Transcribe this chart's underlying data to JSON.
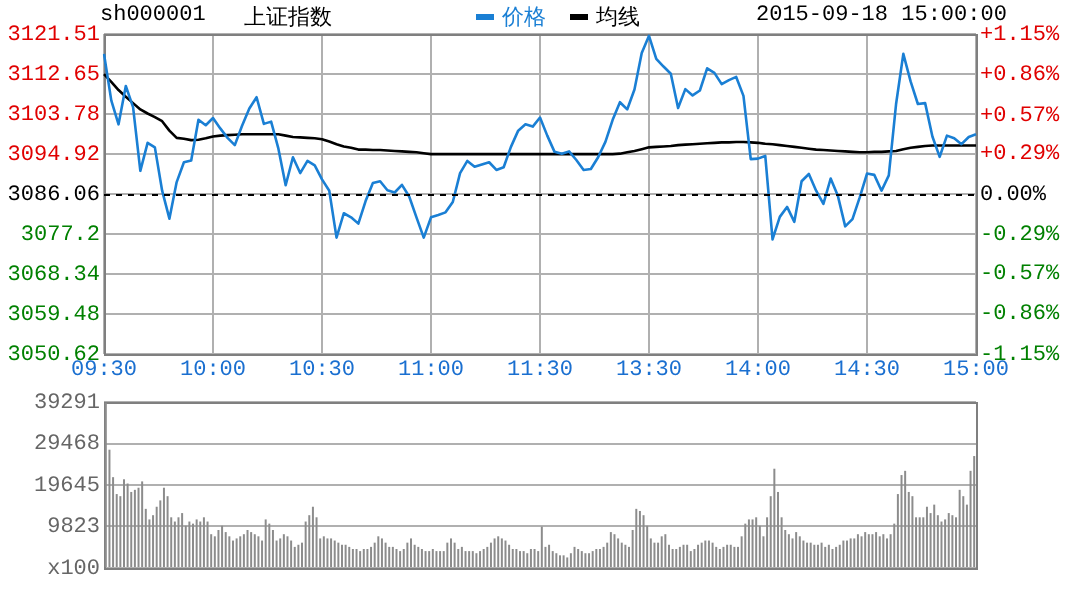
{
  "chart_data": [
    {
      "type": "line",
      "title": "上证指数",
      "subtitle": "sh000001",
      "annotations": [
        "2015-09-18 15:00:00"
      ],
      "legend": "top",
      "grid": true,
      "marker": "none",
      "line_style": "solid",
      "categories": [
        "09:30",
        null,
        null,
        null,
        null,
        null,
        null,
        null,
        null,
        null,
        null,
        null,
        null,
        null,
        null,
        "10:00",
        null,
        null,
        null,
        null,
        null,
        null,
        null,
        null,
        null,
        null,
        null,
        null,
        null,
        null,
        "10:30",
        null,
        null,
        null,
        null,
        null,
        null,
        null,
        null,
        null,
        null,
        null,
        null,
        null,
        null,
        "11:00",
        null,
        null,
        null,
        null,
        null,
        null,
        null,
        null,
        null,
        null,
        null,
        null,
        null,
        null,
        "11:30",
        null,
        null,
        null,
        null,
        null,
        null,
        null,
        null,
        null,
        null,
        null,
        null,
        null,
        null,
        "13:30",
        null,
        null,
        null,
        null,
        null,
        null,
        null,
        null,
        null,
        null,
        null,
        null,
        null,
        null,
        "14:00",
        null,
        null,
        null,
        null,
        null,
        null,
        null,
        null,
        null,
        null,
        null,
        null,
        null,
        null,
        "14:30",
        null,
        null,
        null,
        null,
        null,
        null,
        null,
        null,
        null,
        null,
        null,
        null,
        null,
        null,
        "15:00"
      ],
      "ylim": [
        3050.62,
        3121.51
      ],
      "yticks": [
        3050.62,
        3059.48,
        3068.34,
        3077.2,
        3086.06,
        3094.92,
        3103.78,
        3112.65,
        3121.51
      ],
      "y2lim": [
        -1.15,
        1.15
      ],
      "y2ticks": [
        {
          "value": -1.15,
          "label": "-1.15%"
        },
        {
          "value": -0.86,
          "label": "-0.86%"
        },
        {
          "value": -0.57,
          "label": "-0.57%"
        },
        {
          "value": -0.29,
          "label": "-0.29%"
        },
        {
          "value": 0,
          "label": "0.00%"
        },
        {
          "value": 0.29,
          "label": "+0.29%"
        },
        {
          "value": 0.57,
          "label": "+0.57%"
        },
        {
          "value": 0.86,
          "label": "+0.86%"
        },
        {
          "value": 1.15,
          "label": "+1.15%"
        }
      ],
      "ref_lines": [
        {
          "axis": "y",
          "value": 3086.06,
          "color": "#000000",
          "line_style": "dashed"
        }
      ],
      "series": [
        {
          "name": "价格",
          "color": "#1a7fd4",
          "values": [
            3117.1,
            3106.8,
            3101.5,
            3110,
            3105.3,
            3091.2,
            3097.4,
            3096.4,
            3086.8,
            3080.6,
            3088.7,
            3093.1,
            3093.5,
            3102.5,
            3101.3,
            3102.9,
            3100.6,
            3098.5,
            3096.9,
            3101.2,
            3105.0,
            3107.5,
            3101.6,
            3102.1,
            3096.1,
            3088.0,
            3094.2,
            3090.7,
            3093.4,
            3092.4,
            3089.3,
            3086.8,
            3076.4,
            3081.8,
            3080.9,
            3079.5,
            3084.5,
            3088.5,
            3088.9,
            3086.9,
            3086.4,
            3088.1,
            3085.5,
            3080.9,
            3076.4,
            3080.9,
            3081.4,
            3082.0,
            3084.3,
            3090.7,
            3093.4,
            3092.1,
            3092.6,
            3093.1,
            3091.4,
            3092.0,
            3096.5,
            3100.1,
            3101.5,
            3101.0,
            3103.0,
            3099.0,
            3095.4,
            3095.0,
            3095.5,
            3093.6,
            3091.4,
            3091.6,
            3094.2,
            3097.6,
            3102.5,
            3106.4,
            3104.8,
            3109.2,
            3117.3,
            3121.1,
            3116.0,
            3114.3,
            3112.7,
            3105.1,
            3109.3,
            3107.9,
            3109.0,
            3113.9,
            3112.9,
            3110.4,
            3111.3,
            3112.0,
            3107.8,
            3093.8,
            3093.9,
            3094.5,
            3076.0,
            3081.0,
            3083.2,
            3079.9,
            3088.9,
            3090.5,
            3086.8,
            3083.9,
            3089.5,
            3085.6,
            3078.9,
            3080.5,
            3085.3,
            3090.6,
            3090.3,
            3086.8,
            3090.2,
            3106.0,
            3117.1,
            3111.0,
            3106.0,
            3106.2,
            3098.8,
            3094.3,
            3099.0,
            3098.4,
            3097.1,
            3098.7,
            3099.3
          ]
        },
        {
          "name": "均线",
          "color": "#000000",
          "values": [
            3112.6,
            3110.9,
            3109.1,
            3107.6,
            3106.2,
            3104.8,
            3103.9,
            3103.1,
            3102.2,
            3100.1,
            3098.5,
            3098.3,
            3098.0,
            3098.1,
            3098.4,
            3098.8,
            3099.0,
            3099.1,
            3099.2,
            3099.3,
            3099.3,
            3099.3,
            3099.3,
            3099.3,
            3099.3,
            3099.0,
            3098.7,
            3098.6,
            3098.5,
            3098.4,
            3098.2,
            3097.7,
            3097.1,
            3096.6,
            3096.3,
            3095.9,
            3095.9,
            3095.8,
            3095.8,
            3095.7,
            3095.6,
            3095.5,
            3095.4,
            3095.3,
            3095.1,
            3094.9,
            3094.9,
            3094.9,
            3094.9,
            3094.9,
            3094.9,
            3094.9,
            3094.9,
            3094.9,
            3094.9,
            3094.9,
            3094.9,
            3094.9,
            3094.9,
            3094.9,
            3094.9,
            3094.9,
            3094.9,
            3094.9,
            3094.9,
            3094.9,
            3094.9,
            3094.9,
            3094.9,
            3094.9,
            3094.9,
            3095.0,
            3095.3,
            3095.6,
            3096.0,
            3096.4,
            3096.5,
            3096.6,
            3096.7,
            3096.9,
            3097.0,
            3097.1,
            3097.2,
            3097.3,
            3097.4,
            3097.5,
            3097.5,
            3097.6,
            3097.6,
            3097.5,
            3097.4,
            3097.2,
            3097.1,
            3096.9,
            3096.7,
            3096.5,
            3096.3,
            3096.1,
            3095.9,
            3095.8,
            3095.7,
            3095.6,
            3095.5,
            3095.4,
            3095.3,
            3095.3,
            3095.4,
            3095.4,
            3095.5,
            3095.6,
            3096.0,
            3096.3,
            3096.5,
            3096.7,
            3096.8,
            3096.8,
            3096.8,
            3096.8,
            3096.8,
            3096.8,
            3096.8
          ]
        }
      ]
    },
    {
      "type": "bar",
      "tick_labels": "y",
      "grid": "y",
      "categories": [
        null,
        null,
        null,
        null,
        null,
        null,
        null,
        null,
        null,
        null,
        null,
        null,
        null,
        null,
        null,
        null,
        null,
        null,
        null,
        null,
        null,
        null,
        null,
        null,
        null,
        null,
        null,
        null,
        null,
        null,
        null,
        null,
        null,
        null,
        null,
        null,
        null,
        null,
        null,
        null,
        null,
        null,
        null,
        null,
        null,
        null,
        null,
        null,
        null,
        null,
        null,
        null,
        null,
        null,
        null,
        null,
        null,
        null,
        null,
        null,
        null,
        null,
        null,
        null,
        null,
        null,
        null,
        null,
        null,
        null,
        null,
        null,
        null,
        null,
        null,
        null,
        null,
        null,
        null,
        null,
        null,
        null,
        null,
        null,
        null,
        null,
        null,
        null,
        null,
        null,
        null,
        null,
        null,
        null,
        null,
        null,
        null,
        null,
        null,
        null,
        null,
        null,
        null,
        null,
        null,
        null,
        null,
        null,
        null,
        null,
        null,
        null,
        null,
        null,
        null,
        null,
        null,
        null,
        null,
        null,
        null,
        null,
        null,
        null,
        null,
        null,
        null,
        null,
        null,
        null,
        null,
        null,
        null,
        null,
        null,
        null,
        null,
        null,
        null,
        null,
        null,
        null,
        null,
        null,
        null,
        null,
        null,
        null,
        null,
        null,
        null,
        null,
        null,
        null,
        null,
        null,
        null,
        null,
        null,
        null,
        null,
        null,
        null,
        null,
        null,
        null,
        null,
        null,
        null,
        null,
        null,
        null,
        null,
        null,
        null,
        null,
        null,
        null,
        null,
        null,
        null,
        null,
        null,
        null,
        null,
        null,
        null,
        null,
        null,
        null,
        null,
        null,
        null,
        null,
        null,
        null,
        null,
        null,
        null,
        null,
        null,
        null,
        null,
        null,
        null,
        null,
        null,
        null,
        null,
        null,
        null,
        null,
        null,
        null,
        null,
        null,
        null,
        null,
        null,
        null,
        null,
        null,
        null,
        null,
        null,
        null,
        null,
        null,
        null,
        null,
        null,
        null,
        null,
        null,
        null,
        null,
        null,
        null,
        null,
        null
      ],
      "ylim": [
        0,
        39291
      ],
      "yticks": [
        {
          "value": 0,
          "label": "x100"
        },
        9823,
        19645,
        29468,
        39291
      ],
      "series": [
        {
          "color": "#8c8c8c",
          "values": [
            39100,
            28000,
            21500,
            17500,
            17000,
            21000,
            20000,
            18000,
            18500,
            19000,
            20500,
            14000,
            11500,
            12500,
            14500,
            16000,
            19000,
            17000,
            12000,
            11000,
            12000,
            13000,
            10000,
            11000,
            10500,
            11500,
            11000,
            12000,
            11000,
            8000,
            7500,
            9000,
            10000,
            8500,
            7500,
            6500,
            7000,
            7500,
            8000,
            9000,
            8500,
            8000,
            7500,
            6500,
            11500,
            10500,
            9000,
            6500,
            7000,
            8000,
            7500,
            6500,
            5000,
            5500,
            6000,
            11000,
            12500,
            14500,
            12000,
            7000,
            7500,
            7000,
            7000,
            6500,
            6000,
            5500,
            5500,
            5000,
            4500,
            4500,
            4000,
            4500,
            4500,
            5000,
            6000,
            7500,
            7000,
            6000,
            5000,
            5000,
            4500,
            4000,
            4500,
            6000,
            7000,
            5500,
            5000,
            4500,
            4000,
            4000,
            4500,
            4000,
            4000,
            4000,
            6000,
            7000,
            6000,
            4500,
            5000,
            4000,
            4000,
            4000,
            3500,
            4000,
            4500,
            5000,
            6000,
            7000,
            7500,
            7000,
            6500,
            5500,
            4500,
            4500,
            4000,
            4000,
            3500,
            4500,
            4500,
            4000,
            9800,
            5000,
            5500,
            4000,
            3500,
            3000,
            3000,
            2500,
            3500,
            5000,
            4500,
            4000,
            3500,
            3500,
            4000,
            4500,
            4500,
            5000,
            6000,
            8500,
            8000,
            7000,
            6000,
            5500,
            5000,
            9000,
            14000,
            13500,
            12500,
            10000,
            7000,
            6000,
            6000,
            7500,
            8000,
            5500,
            4500,
            4500,
            5000,
            5500,
            5500,
            4000,
            4500,
            5500,
            6000,
            6500,
            6500,
            6000,
            5000,
            4500,
            5000,
            5500,
            5500,
            5000,
            5000,
            7500,
            10500,
            11500,
            11500,
            12000,
            10000,
            7500,
            12000,
            17000,
            23500,
            18000,
            12000,
            9000,
            8000,
            7000,
            8500,
            7500,
            6500,
            6000,
            6000,
            5500,
            5500,
            6000,
            5000,
            5500,
            4500,
            5000,
            5500,
            6500,
            6500,
            7000,
            7000,
            8000,
            7500,
            8500,
            8000,
            8000,
            8500,
            7500,
            8000,
            7000,
            8000,
            10500,
            17500,
            22000,
            23000,
            18000,
            17000,
            12000,
            12000,
            12000,
            14500,
            13000,
            15000,
            12500,
            11000,
            11500,
            13000,
            12500,
            12000,
            18500,
            17000,
            15000,
            23000,
            26500
          ]
        }
      ]
    }
  ]
}
